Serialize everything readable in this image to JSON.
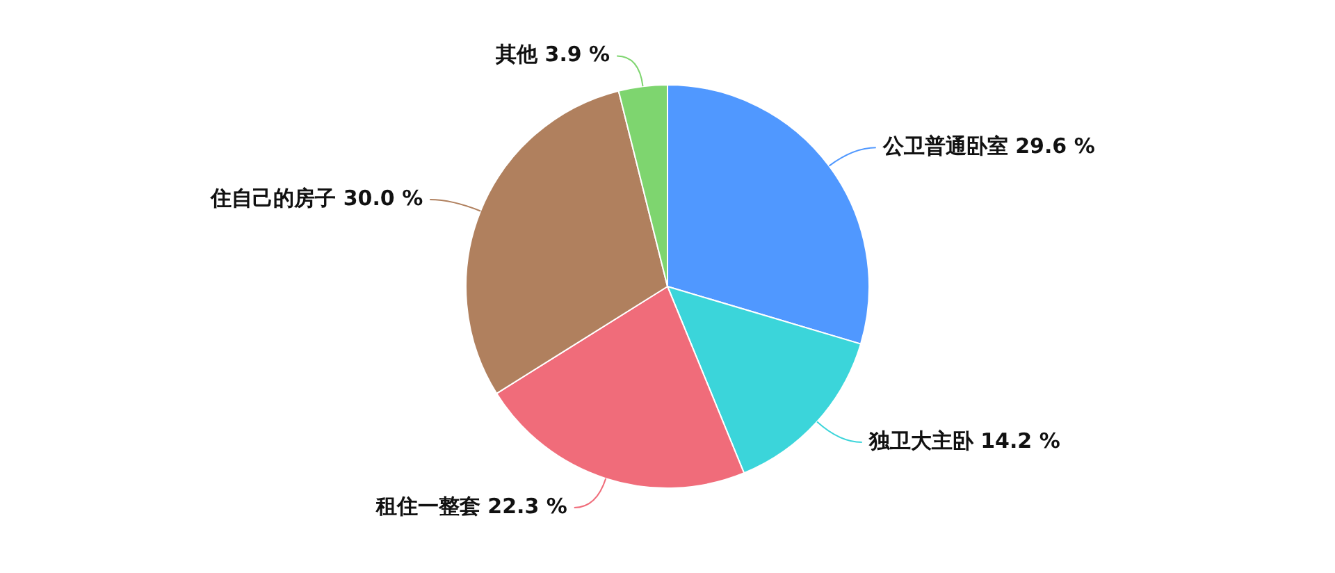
{
  "chart_data": {
    "type": "pie",
    "categories": [
      "公卫普通卧室",
      "独卫大主卧",
      "租住一整套",
      "住自己的房子",
      "其他"
    ],
    "values": [
      29.6,
      14.2,
      22.3,
      30.0,
      3.9
    ],
    "value_labels": [
      "29.6 %",
      "14.2 %",
      "22.3 %",
      "30.0 %",
      "3.9 %"
    ],
    "colors": [
      "#5098ff",
      "#3bd5da",
      "#f06c7a",
      "#b0805e",
      "#7ed56f"
    ],
    "legend": false
  }
}
